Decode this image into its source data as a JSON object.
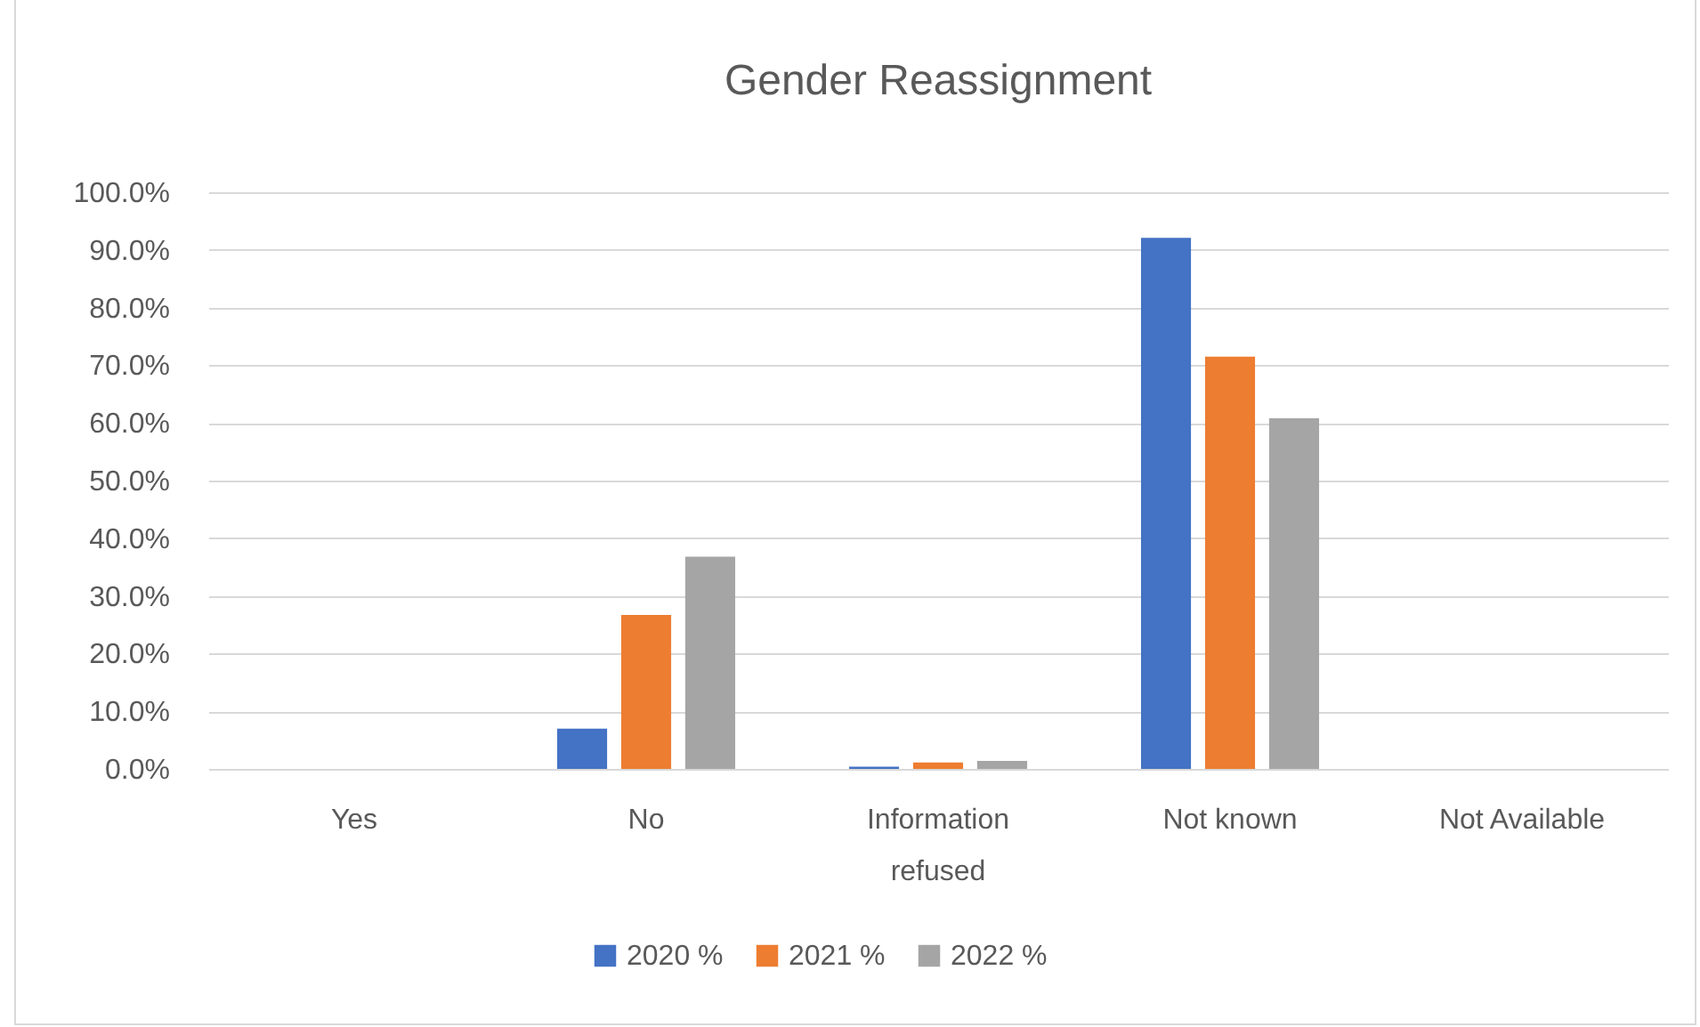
{
  "chart_data": {
    "type": "bar",
    "title": "Gender Reassignment",
    "categories": [
      "Yes",
      "No",
      "Information refused",
      "Not known",
      "Not Available"
    ],
    "series": [
      {
        "name": "2020 %",
        "color": "#4472c4",
        "values": [
          0,
          7.0,
          0.4,
          92.1,
          0
        ]
      },
      {
        "name": "2021 %",
        "color": "#ed7d31",
        "values": [
          0,
          26.7,
          1.1,
          71.5,
          0
        ]
      },
      {
        "name": "2022 %",
        "color": "#a5a5a5",
        "values": [
          0,
          36.8,
          1.4,
          60.8,
          0
        ]
      }
    ],
    "ylim": [
      0,
      100
    ],
    "yticks": [
      {
        "value": 0,
        "label": "0.0%"
      },
      {
        "value": 10,
        "label": "10.0%"
      },
      {
        "value": 20,
        "label": "20.0%"
      },
      {
        "value": 30,
        "label": "30.0%"
      },
      {
        "value": 40,
        "label": "40.0%"
      },
      {
        "value": 50,
        "label": "50.0%"
      },
      {
        "value": 60,
        "label": "60.0%"
      },
      {
        "value": 70,
        "label": "70.0%"
      },
      {
        "value": 80,
        "label": "80.0%"
      },
      {
        "value": 90,
        "label": "90.0%"
      },
      {
        "value": 100,
        "label": "100.0%"
      }
    ],
    "grid": true,
    "legend": "bottom"
  }
}
